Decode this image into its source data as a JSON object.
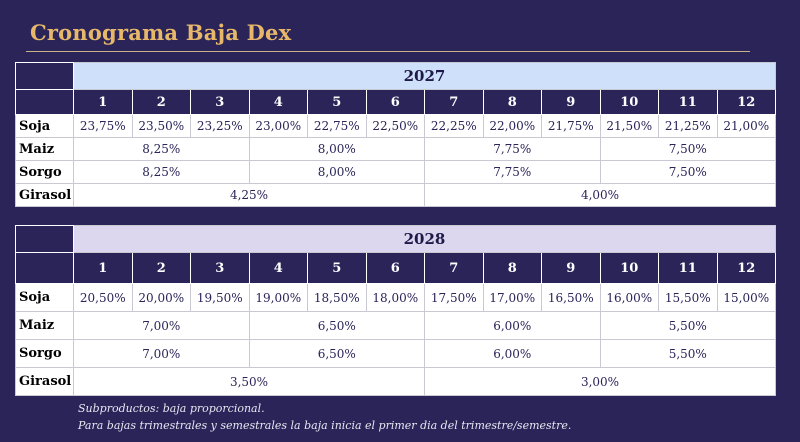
{
  "title": "Cronograma Baja Dex",
  "months": [
    "1",
    "2",
    "3",
    "4",
    "5",
    "6",
    "7",
    "8",
    "9",
    "10",
    "11",
    "12"
  ],
  "labels": {
    "soja": "Soja",
    "maiz": "Maiz",
    "sorgo": "Sorgo",
    "girasol": "Girasol"
  },
  "y2027": {
    "year": "2027",
    "soja": [
      "23,75%",
      "23,50%",
      "23,25%",
      "23,00%",
      "22,75%",
      "22,50%",
      "22,25%",
      "22,00%",
      "21,75%",
      "21,50%",
      "21,25%",
      "21,00%"
    ],
    "maiz": [
      "8,25%",
      "8,00%",
      "7,75%",
      "7,50%"
    ],
    "sorgo": [
      "8,25%",
      "8,00%",
      "7,75%",
      "7,50%"
    ],
    "girasol": [
      "4,25%",
      "4,00%"
    ]
  },
  "y2028": {
    "year": "2028",
    "soja": [
      "20,50%",
      "20,00%",
      "19,50%",
      "19,00%",
      "18,50%",
      "18,00%",
      "17,50%",
      "17,00%",
      "16,50%",
      "16,00%",
      "15,50%",
      "15,00%"
    ],
    "maiz": [
      "7,00%",
      "6,50%",
      "6,00%",
      "5,50%"
    ],
    "sorgo": [
      "7,00%",
      "6,50%",
      "6,00%",
      "5,50%"
    ],
    "girasol": [
      "3,50%",
      "3,00%"
    ]
  },
  "notes": {
    "line1": "Subproductos: baja proporcional.",
    "line2": "Para bajas trimestrales y semestrales la baja inicia el primer dia del trimestre/semestre."
  }
}
